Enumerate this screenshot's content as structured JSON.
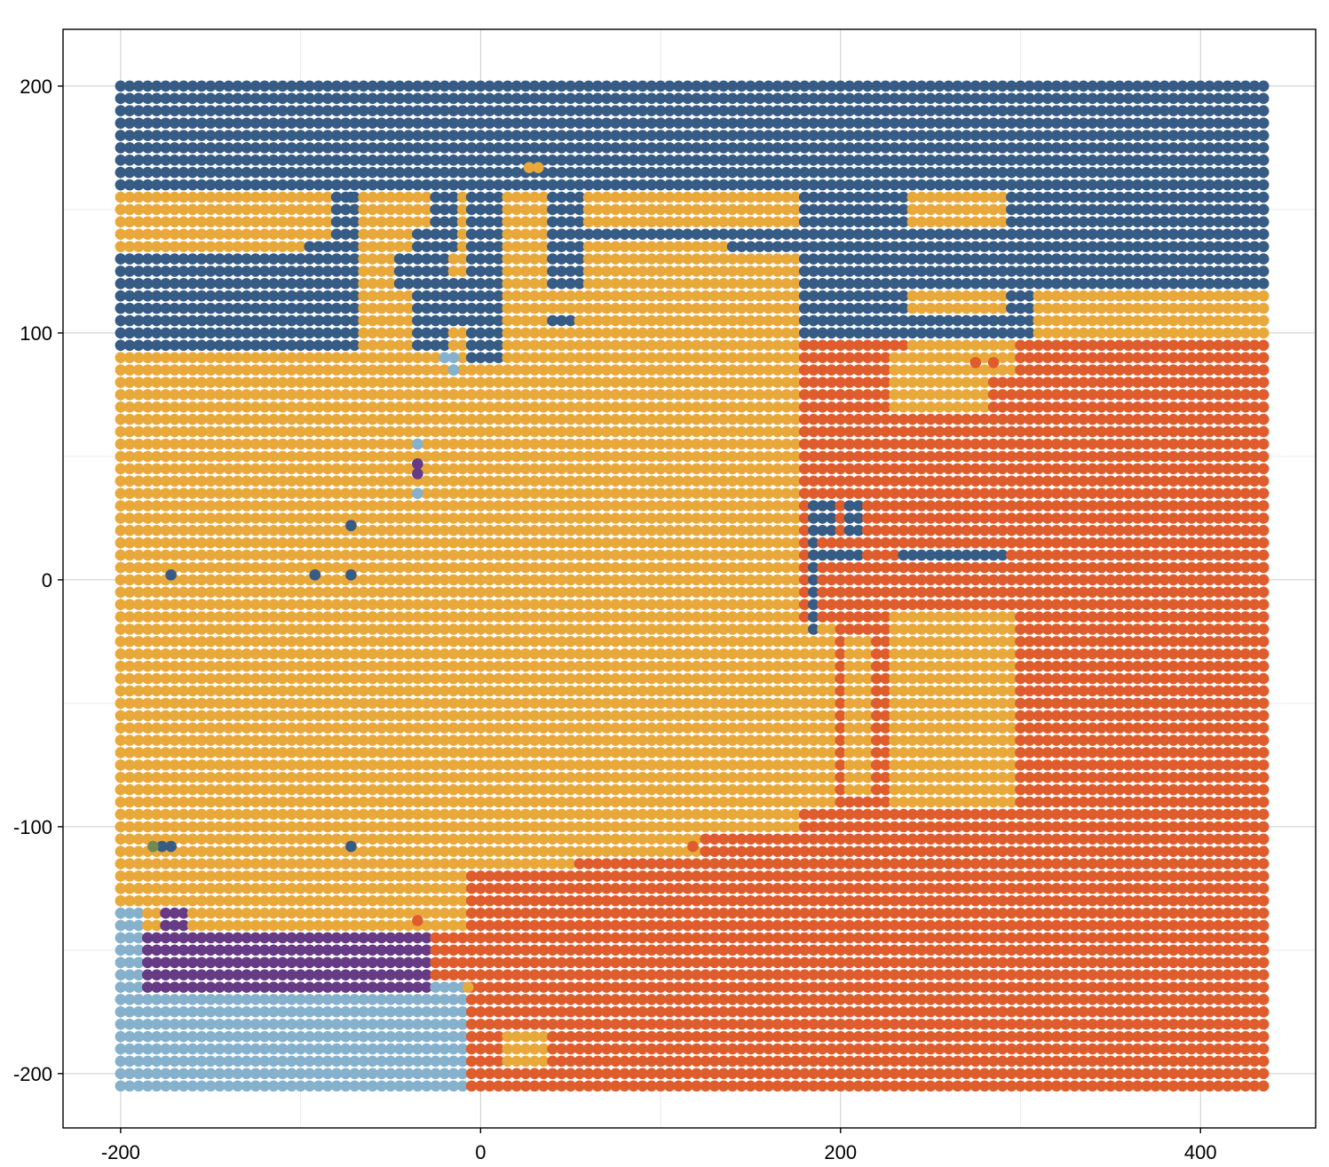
{
  "chart_data": {
    "type": "scatter",
    "title": "",
    "xlabel": "",
    "ylabel": "",
    "xlim": [
      -232,
      464
    ],
    "ylim": [
      -222,
      223
    ],
    "x_ticks": [
      -200,
      0,
      200,
      400
    ],
    "y_ticks": [
      -200,
      -100,
      0,
      100,
      200
    ],
    "x_tick_labels": [
      "-200",
      "0",
      "200",
      "400"
    ],
    "y_tick_labels": [
      "-200",
      "-100",
      "0",
      "100",
      "200"
    ],
    "grid": true,
    "legend": "none",
    "grid_spacing": 5,
    "grid_x_range": [
      -200,
      435
    ],
    "grid_y_range": [
      -205,
      204
    ],
    "colors": {
      "navy": "#365b84",
      "gold": "#e8a83a",
      "orange": "#df5c2c",
      "lightblue": "#85b1cc",
      "purple": "#663a84",
      "green": "#6f8b53"
    },
    "default_class": "gold",
    "regions": [
      {
        "class": "navy",
        "x": [
          -200,
          435
        ],
        "y": [
          158,
          204
        ]
      },
      {
        "class": "navy",
        "x": [
          -200,
          -67
        ],
        "y": [
          95,
          128
        ]
      },
      {
        "class": "navy",
        "x": [
          -200,
          -67
        ],
        "y": [
          128,
          132
        ]
      },
      {
        "class": "navy",
        "x": [
          -95,
          -67
        ],
        "y": [
          128,
          137
        ]
      },
      {
        "class": "navy",
        "x": [
          -80,
          -67
        ],
        "y": [
          128,
          155
        ]
      },
      {
        "class": "navy",
        "x": [
          -38,
          -18
        ],
        "y": [
          95,
          140
        ]
      },
      {
        "class": "navy",
        "x": [
          -38,
          -8
        ],
        "y": [
          105,
          120
        ]
      },
      {
        "class": "navy",
        "x": [
          -45,
          -35
        ],
        "y": [
          118,
          130
        ]
      },
      {
        "class": "navy",
        "x": [
          -28,
          -13
        ],
        "y": [
          135,
          158
        ]
      },
      {
        "class": "navy",
        "x": [
          -8,
          12
        ],
        "y": [
          88,
          158
        ]
      },
      {
        "class": "navy",
        "x": [
          38,
          55
        ],
        "y": [
          118,
          158
        ]
      },
      {
        "class": "navy",
        "x": [
          38,
          50
        ],
        "y": [
          102,
          108
        ]
      },
      {
        "class": "navy",
        "x": [
          55,
          177
        ],
        "y": [
          140,
          144
        ]
      },
      {
        "class": "navy",
        "x": [
          140,
          177
        ],
        "y": [
          132,
          137
        ]
      },
      {
        "class": "navy",
        "x": [
          153,
          177
        ],
        "y": [
          137,
          140
        ]
      },
      {
        "class": "navy",
        "x": [
          177,
          235
        ],
        "y": [
          88,
          158
        ]
      },
      {
        "class": "navy",
        "x": [
          235,
          435
        ],
        "y": [
          118,
          158
        ]
      },
      {
        "class": "navy",
        "x": [
          290,
          305
        ],
        "y": [
          100,
          118
        ]
      },
      {
        "class": "navy",
        "x": [
          235,
          295
        ],
        "y": [
          95,
          105
        ]
      },
      {
        "class": "gold",
        "x": [
          237,
          292
        ],
        "y": [
          145,
          156
        ]
      },
      {
        "class": "gold",
        "x": [
          237,
          292
        ],
        "y": [
          108,
          117
        ]
      },
      {
        "class": "orange",
        "x": [
          177,
          435
        ],
        "y": [
          -205,
          95
        ]
      },
      {
        "class": "orange",
        "x": [
          -8,
          177
        ],
        "y": [
          -205,
          -118
        ]
      },
      {
        "class": "orange",
        "x": [
          55,
          177
        ],
        "y": [
          -118,
          -112
        ]
      },
      {
        "class": "orange",
        "x": [
          125,
          177
        ],
        "y": [
          -112,
          -105
        ]
      },
      {
        "class": "orange",
        "x": [
          -27,
          -8
        ],
        "y": [
          -162,
          -145
        ]
      },
      {
        "class": "gold",
        "x": [
          177,
          197
        ],
        "y": [
          -90,
          -20
        ]
      },
      {
        "class": "gold",
        "x": [
          205,
          215
        ],
        "y": [
          -88,
          -25
        ]
      },
      {
        "class": "gold",
        "x": [
          230,
          295
        ],
        "y": [
          -90,
          -15
        ]
      },
      {
        "class": "gold",
        "x": [
          230,
          280
        ],
        "y": [
          68,
          92
        ]
      },
      {
        "class": "gold",
        "x": [
          237,
          295
        ],
        "y": [
          82,
          95
        ]
      },
      {
        "class": "gold",
        "x": [
          12,
          35
        ],
        "y": [
          -195,
          -185
        ]
      },
      {
        "class": "navy",
        "x": [
          182,
          188
        ],
        "y": [
          -20,
          25
        ]
      },
      {
        "class": "navy",
        "x": [
          182,
          195
        ],
        "y": [
          20,
          30
        ]
      },
      {
        "class": "navy",
        "x": [
          182,
          210
        ],
        "y": [
          8,
          12
        ]
      },
      {
        "class": "navy",
        "x": [
          202,
          212
        ],
        "y": [
          20,
          30
        ]
      },
      {
        "class": "navy",
        "x": [
          232,
          290
        ],
        "y": [
          8,
          12
        ]
      },
      {
        "class": "lightblue",
        "x": [
          -200,
          -187
        ],
        "y": [
          -205,
          -135
        ]
      },
      {
        "class": "lightblue",
        "x": [
          -200,
          -8
        ],
        "y": [
          -205,
          -165
        ]
      },
      {
        "class": "purple",
        "x": [
          -187,
          -27
        ],
        "y": [
          -165,
          -145
        ]
      },
      {
        "class": "purple",
        "x": [
          -177,
          -165
        ],
        "y": [
          -145,
          -135
        ]
      }
    ],
    "points": [
      {
        "x": -172,
        "y": 2,
        "class": "navy"
      },
      {
        "x": -92,
        "y": 2,
        "class": "navy"
      },
      {
        "x": -72,
        "y": 2,
        "class": "navy"
      },
      {
        "x": -72,
        "y": 22,
        "class": "navy"
      },
      {
        "x": -72,
        "y": -108,
        "class": "navy"
      },
      {
        "x": -177,
        "y": -108,
        "class": "navy"
      },
      {
        "x": -172,
        "y": -108,
        "class": "navy"
      },
      {
        "x": -182,
        "y": -108,
        "class": "green"
      },
      {
        "x": -35,
        "y": 55,
        "class": "lightblue"
      },
      {
        "x": -35,
        "y": 35,
        "class": "lightblue"
      },
      {
        "x": -35,
        "y": 47,
        "class": "purple"
      },
      {
        "x": -35,
        "y": 43,
        "class": "purple"
      },
      {
        "x": -20,
        "y": 90,
        "class": "lightblue"
      },
      {
        "x": -15,
        "y": 90,
        "class": "lightblue"
      },
      {
        "x": -15,
        "y": 85,
        "class": "lightblue"
      },
      {
        "x": -35,
        "y": -138,
        "class": "orange"
      },
      {
        "x": 118,
        "y": -108,
        "class": "orange"
      },
      {
        "x": 275,
        "y": 88,
        "class": "orange"
      },
      {
        "x": 285,
        "y": 88,
        "class": "orange"
      },
      {
        "x": 27,
        "y": 167,
        "class": "gold"
      },
      {
        "x": 32,
        "y": 167,
        "class": "gold"
      },
      {
        "x": -7,
        "y": -165,
        "class": "gold"
      },
      {
        "x": -72,
        "y": 155,
        "class": "navy"
      }
    ]
  }
}
